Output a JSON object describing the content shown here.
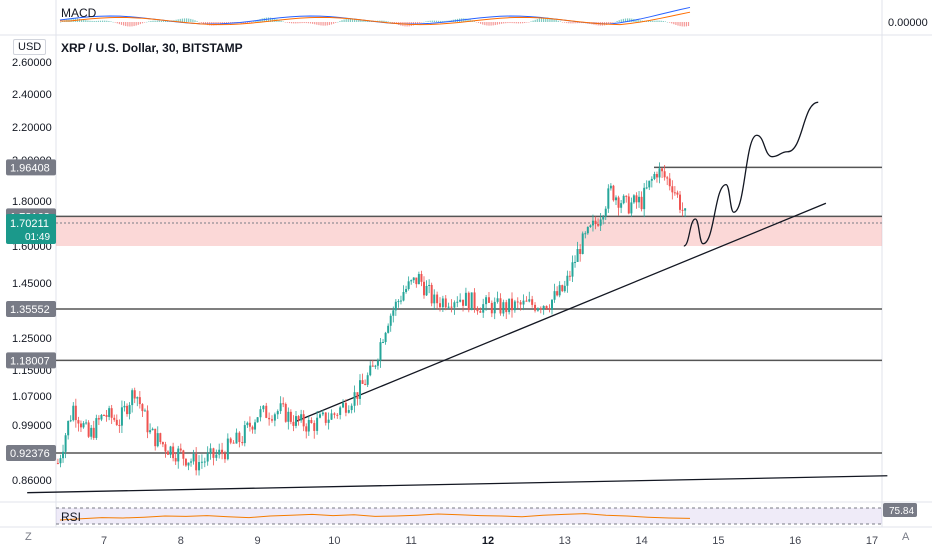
{
  "header": {
    "macd_label": "MACD",
    "macd_value": "0.00000",
    "rsi_label": "RSI",
    "rsi_value": "75.84",
    "currency": "USD",
    "symbol_title": "XRP / U.S. Dollar, 30, BITSTAMP"
  },
  "nav": {
    "zoom_label": "Z",
    "auto_label": "A"
  },
  "chart_data": {
    "type": "candlestick",
    "title": "XRP / U.S. Dollar, 30, BITSTAMP",
    "y_axis_labels": [
      "2.60000",
      "2.40000",
      "2.20000",
      "2.00000",
      "1.80000",
      "1.60000",
      "1.45000",
      "1.25000",
      "1.15000",
      "1.07000",
      "0.99000",
      "0.86000"
    ],
    "x_axis_labels": [
      "7",
      "8",
      "9",
      "10",
      "11",
      "12",
      "13",
      "14",
      "15",
      "16",
      "17"
    ],
    "x_days": [
      7,
      8,
      9,
      10,
      11,
      12,
      13,
      14,
      15,
      16,
      17
    ],
    "horizontal_levels": [
      {
        "price": 1.96408,
        "label": "1.96408"
      },
      {
        "price": 1.73162,
        "label": "1.73162"
      },
      {
        "price": 1.35552,
        "label": "1.35552"
      },
      {
        "price": 1.18007,
        "label": "1.18007"
      },
      {
        "price": 0.92376,
        "label": "0.92376"
      }
    ],
    "current_price": {
      "price": 1.70211,
      "label": "1.70211",
      "countdown": "01:49"
    },
    "supply_zone": {
      "from": 1.6,
      "to": 1.73162
    },
    "price_path": [
      {
        "day": 6.4,
        "price": 0.9
      },
      {
        "day": 6.6,
        "price": 1.04
      },
      {
        "day": 6.8,
        "price": 0.96
      },
      {
        "day": 7.0,
        "price": 1.02
      },
      {
        "day": 7.2,
        "price": 1.0
      },
      {
        "day": 7.4,
        "price": 1.09
      },
      {
        "day": 7.6,
        "price": 0.97
      },
      {
        "day": 7.8,
        "price": 0.94
      },
      {
        "day": 8.0,
        "price": 0.92
      },
      {
        "day": 8.2,
        "price": 0.9
      },
      {
        "day": 8.5,
        "price": 0.92
      },
      {
        "day": 8.8,
        "price": 0.96
      },
      {
        "day": 9.0,
        "price": 1.02
      },
      {
        "day": 9.3,
        "price": 1.03
      },
      {
        "day": 9.5,
        "price": 1.0
      },
      {
        "day": 9.7,
        "price": 0.99
      },
      {
        "day": 10.0,
        "price": 1.02
      },
      {
        "day": 10.3,
        "price": 1.08
      },
      {
        "day": 10.5,
        "price": 1.15
      },
      {
        "day": 10.7,
        "price": 1.32
      },
      {
        "day": 10.9,
        "price": 1.42
      },
      {
        "day": 11.1,
        "price": 1.47
      },
      {
        "day": 11.3,
        "price": 1.38
      },
      {
        "day": 11.6,
        "price": 1.4
      },
      {
        "day": 11.9,
        "price": 1.37
      },
      {
        "day": 12.2,
        "price": 1.36
      },
      {
        "day": 12.5,
        "price": 1.37
      },
      {
        "day": 12.8,
        "price": 1.38
      },
      {
        "day": 13.0,
        "price": 1.43
      },
      {
        "day": 13.2,
        "price": 1.6
      },
      {
        "day": 13.4,
        "price": 1.7
      },
      {
        "day": 13.6,
        "price": 1.85
      },
      {
        "day": 13.8,
        "price": 1.78
      },
      {
        "day": 14.0,
        "price": 1.8
      },
      {
        "day": 14.2,
        "price": 1.95
      },
      {
        "day": 14.4,
        "price": 1.88
      },
      {
        "day": 14.6,
        "price": 1.7
      }
    ],
    "projection_path": [
      {
        "day": 14.55,
        "price": 1.6
      },
      {
        "day": 14.7,
        "price": 1.72
      },
      {
        "day": 14.8,
        "price": 1.61
      },
      {
        "day": 15.1,
        "price": 1.88
      },
      {
        "day": 15.2,
        "price": 1.75
      },
      {
        "day": 15.5,
        "price": 2.15
      },
      {
        "day": 15.7,
        "price": 2.02
      },
      {
        "day": 15.9,
        "price": 2.05
      },
      {
        "day": 16.3,
        "price": 2.35
      }
    ],
    "trendlines": [
      {
        "from": {
          "day": 9.5,
          "price": 1.0
        },
        "to": {
          "day": 16.4,
          "price": 1.79
        }
      },
      {
        "from": {
          "day": 6.0,
          "price": 0.83
        },
        "to": {
          "day": 17.2,
          "price": 0.87
        }
      }
    ],
    "rsi_series": [
      60,
      63,
      66,
      65,
      67,
      70,
      69,
      71,
      68,
      66,
      70,
      72,
      74,
      71,
      73,
      69,
      70,
      72,
      75,
      73,
      71,
      70,
      68,
      72,
      74,
      76,
      72,
      70,
      67,
      65,
      64
    ]
  }
}
